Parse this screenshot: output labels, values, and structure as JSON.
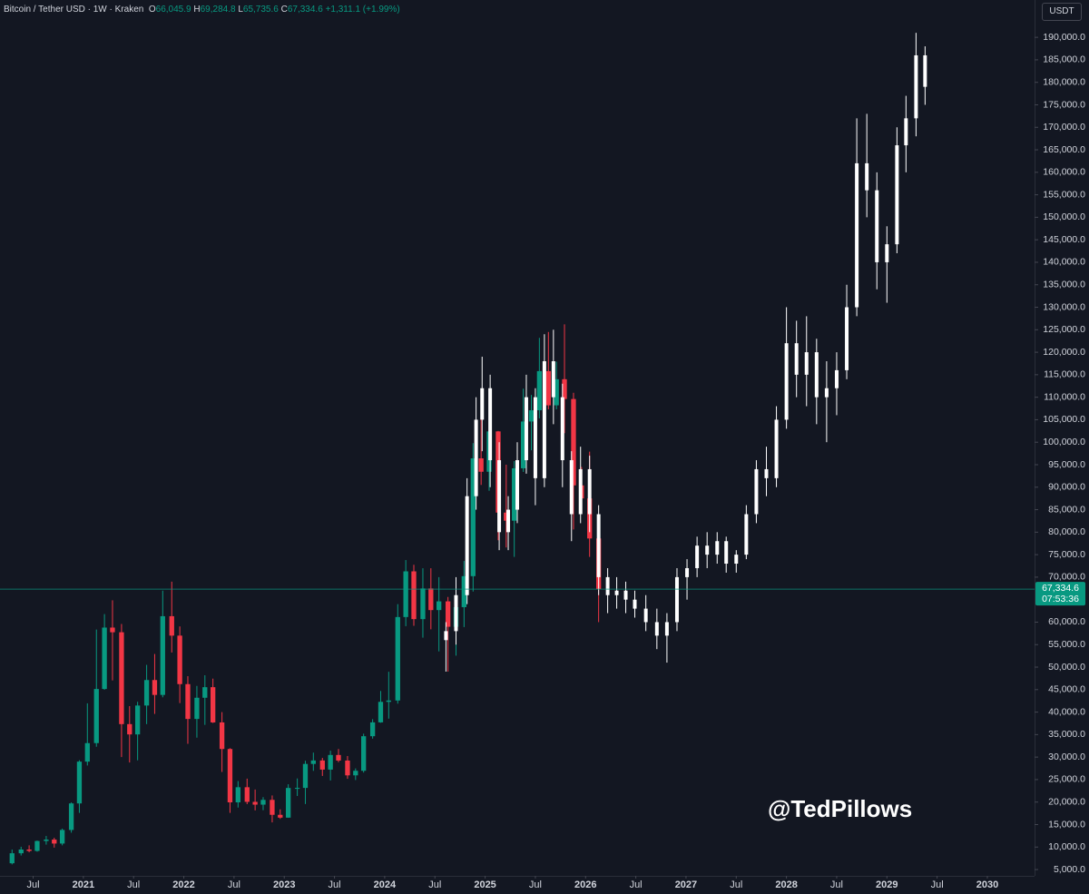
{
  "chart_data": {
    "type": "candlestick",
    "title": "Bitcoin / Tether USD · 1W · Kraken",
    "ohlc_labels": [
      {
        "key": "O",
        "value": "66,045.9"
      },
      {
        "key": "H",
        "value": "69,284.8"
      },
      {
        "key": "L",
        "value": "65,735.6"
      },
      {
        "key": "C",
        "value": "67,334.6"
      }
    ],
    "change": "+1,311.1 (+1.99%)",
    "currency": "USDT",
    "watermark": "@TedPillows",
    "last_price": {
      "value": 67334.6,
      "label": "67,334.6"
    },
    "countdown": "07:53:36",
    "last_price_color": "#089981",
    "grid": false,
    "xlim": [
      2020.17,
      2030.47
    ],
    "ylim": [
      3600,
      198300
    ],
    "xticks": [
      {
        "value": 2020.5,
        "label": "Jul"
      },
      2021,
      {
        "value": 2021.5,
        "label": "Jul"
      },
      2022,
      {
        "value": 2022.5,
        "label": "Jul"
      },
      2023,
      {
        "value": 2023.5,
        "label": "Jul"
      },
      2024,
      {
        "value": 2024.5,
        "label": "Jul"
      },
      2025,
      {
        "value": 2025.5,
        "label": "Jul"
      },
      2026,
      {
        "value": 2026.5,
        "label": "Jul"
      },
      2027,
      {
        "value": 2027.5,
        "label": "Jul"
      },
      2028,
      {
        "value": 2028.5,
        "label": "Jul"
      },
      2029,
      {
        "value": 2029.5,
        "label": "Jul"
      },
      2030
    ],
    "yticks": [
      {
        "value": 5000,
        "label": "5,000.0"
      },
      {
        "value": 10000,
        "label": "10,000.0"
      },
      {
        "value": 15000,
        "label": "15,000.0"
      },
      {
        "value": 20000,
        "label": "20,000.0"
      },
      {
        "value": 25000,
        "label": "25,000.0"
      },
      {
        "value": 30000,
        "label": "30,000.0"
      },
      {
        "value": 35000,
        "label": "35,000.0"
      },
      {
        "value": 40000,
        "label": "40,000.0"
      },
      {
        "value": 45000,
        "label": "45,000.0"
      },
      {
        "value": 50000,
        "label": "50,000.0"
      },
      {
        "value": 55000,
        "label": "55,000.0"
      },
      {
        "value": 60000,
        "label": "60,000.0"
      },
      {
        "value": 70000,
        "label": "70,000.0"
      },
      {
        "value": 75000,
        "label": "75,000.0"
      },
      {
        "value": 80000,
        "label": "80,000.0"
      },
      {
        "value": 85000,
        "label": "85,000.0"
      },
      {
        "value": 90000,
        "label": "90,000.0"
      },
      {
        "value": 95000,
        "label": "95,000.0"
      },
      {
        "value": 100000,
        "label": "100,000.0"
      },
      {
        "value": 105000,
        "label": "105,000.0"
      },
      {
        "value": 110000,
        "label": "110,000.0"
      },
      {
        "value": 115000,
        "label": "115,000.0"
      },
      {
        "value": 120000,
        "label": "120,000.0"
      },
      {
        "value": 125000,
        "label": "125,000.0"
      },
      {
        "value": 130000,
        "label": "130,000.0"
      },
      {
        "value": 135000,
        "label": "135,000.0"
      },
      {
        "value": 140000,
        "label": "140,000.0"
      },
      {
        "value": 145000,
        "label": "145,000.0"
      },
      {
        "value": 150000,
        "label": "150,000.0"
      },
      {
        "value": 155000,
        "label": "155,000.0"
      },
      {
        "value": 160000,
        "label": "160,000.0"
      },
      {
        "value": 165000,
        "label": "165,000.0"
      },
      {
        "value": 170000,
        "label": "170,000.0"
      },
      {
        "value": 175000,
        "label": "175,000.0"
      },
      {
        "value": 180000,
        "label": "180,000.0"
      },
      {
        "value": 185000,
        "label": "185,000.0"
      },
      {
        "value": 190000,
        "label": "190,000.0"
      }
    ],
    "series": [
      {
        "up_color": "#089981",
        "down_color": "#f23645",
        "x": [
          2020.29,
          2020.38,
          2020.46,
          2020.54,
          2020.63,
          2020.71,
          2020.79,
          2020.88,
          2020.96,
          2021.04,
          2021.13,
          2021.21,
          2021.29,
          2021.38,
          2021.46,
          2021.54,
          2021.63,
          2021.71,
          2021.79,
          2021.88,
          2021.96,
          2022.04,
          2022.13,
          2022.21,
          2022.29,
          2022.38,
          2022.46,
          2022.54,
          2022.63,
          2022.71,
          2022.79,
          2022.88,
          2022.96,
          2023.04,
          2023.13,
          2023.21,
          2023.29,
          2023.38,
          2023.46,
          2023.54,
          2023.63,
          2023.71,
          2023.79,
          2023.88,
          2023.96,
          2024.04,
          2024.13,
          2024.21,
          2024.29,
          2024.38,
          2024.46,
          2024.54,
          2024.63,
          2024.71,
          2024.79,
          2024.88,
          2024.96,
          2025.04,
          2025.13,
          2025.21,
          2025.29,
          2025.38,
          2025.46,
          2025.54,
          2025.63,
          2025.71,
          2025.79,
          2025.88,
          2025.96,
          2026.04,
          2026.13
        ],
        "open": [
          6400,
          8620,
          9450,
          9140,
          11350,
          11660,
          10780,
          13800,
          19700,
          28990,
          33110,
          45140,
          58790,
          57750,
          37330,
          35040,
          41460,
          47130,
          43820,
          61320,
          57000,
          46220,
          38480,
          43190,
          45540,
          37710,
          31800,
          19940,
          23300,
          20050,
          19430,
          20490,
          17170,
          16540,
          23140,
          23150,
          28480,
          29250,
          27220,
          30470,
          29230,
          25940,
          26960,
          34640,
          37720,
          42280,
          42580,
          61130,
          71290,
          60670,
          67490,
          62680,
          64620,
          58970,
          63330,
          70220,
          96410,
          93430,
          102400,
          84350,
          82550,
          94200,
          104600,
          107100,
          115800,
          108200,
          114000,
          109600,
          90400,
          87500,
          78600
        ],
        "high": [
          9450,
          10070,
          10380,
          11440,
          12470,
          12070,
          14100,
          19920,
          29300,
          41950,
          58350,
          61790,
          64850,
          59600,
          41330,
          42300,
          50500,
          52920,
          67000,
          69000,
          59050,
          47990,
          45820,
          48190,
          47440,
          40000,
          31980,
          24670,
          25210,
          22790,
          21100,
          21470,
          18390,
          23960,
          25250,
          29190,
          31000,
          29820,
          31430,
          31800,
          30240,
          27480,
          35200,
          38430,
          44700,
          48970,
          64000,
          73800,
          72750,
          71980,
          71980,
          70000,
          65600,
          66500,
          73600,
          99800,
          108300,
          109600,
          102500,
          95000,
          95800,
          111900,
          110500,
          123200,
          124500,
          117900,
          126200,
          111000,
          94500,
          97900,
          79300
        ],
        "low": [
          6150,
          8120,
          8830,
          8970,
          10540,
          9880,
          10380,
          13200,
          17600,
          28130,
          32300,
          44960,
          47050,
          30000,
          28800,
          29280,
          37330,
          39600,
          43290,
          53250,
          42000,
          32950,
          34320,
          37160,
          37580,
          26700,
          17600,
          18780,
          19540,
          18150,
          18190,
          15480,
          16260,
          16500,
          21350,
          19570,
          26940,
          25810,
          24800,
          28860,
          25170,
          24900,
          26560,
          34100,
          37630,
          38550,
          41880,
          59100,
          59190,
          56550,
          58400,
          53500,
          49000,
          52550,
          58900,
          66800,
          90500,
          89200,
          78200,
          76600,
          74500,
          93400,
          98200,
          105300,
          107300,
          107300,
          102000,
          80600,
          84500,
          74500,
          60000
        ],
        "close": [
          8620,
          9450,
          9140,
          11350,
          11660,
          10780,
          13800,
          19700,
          28990,
          33110,
          45140,
          58790,
          57750,
          37330,
          35040,
          41460,
          47130,
          43820,
          61320,
          57000,
          46220,
          38480,
          43190,
          45540,
          37710,
          31800,
          19940,
          23300,
          20050,
          19430,
          20490,
          17170,
          16540,
          23140,
          23150,
          28480,
          29250,
          27220,
          30470,
          29230,
          25940,
          26960,
          34640,
          37720,
          42280,
          42580,
          61130,
          71290,
          60670,
          67490,
          62680,
          64620,
          58970,
          63330,
          70220,
          96410,
          93430,
          102400,
          84350,
          82550,
          94200,
          104600,
          107100,
          115800,
          108200,
          114000,
          109600,
          90400,
          87500,
          78600,
          67334.6
        ]
      },
      {
        "up_color": "#ffffff",
        "down_color": "#ffffff",
        "x": [
          2024.61,
          2024.71,
          2024.82,
          2024.91,
          2024.97,
          2025.05,
          2025.14,
          2025.23,
          2025.32,
          2025.41,
          2025.5,
          2025.59,
          2025.68,
          2025.77,
          2025.86,
          2025.95,
          2026.04,
          2026.13,
          2026.22,
          2026.31,
          2026.4,
          2026.49,
          2026.6,
          2026.71,
          2026.81,
          2026.91,
          2027.01,
          2027.11,
          2027.21,
          2027.31,
          2027.4,
          2027.5,
          2027.6,
          2027.7,
          2027.8,
          2027.9,
          2028.0,
          2028.1,
          2028.2,
          2028.3,
          2028.4,
          2028.5,
          2028.6,
          2028.7,
          2028.8,
          2028.9,
          2029.0,
          2029.1,
          2029.19,
          2029.29,
          2029.38
        ],
        "open": [
          56000,
          58000,
          66000,
          88000,
          105000,
          112000,
          96000,
          80000,
          85000,
          96000,
          110000,
          92000,
          118000,
          110000,
          96000,
          84000,
          94000,
          84000,
          70000,
          66000,
          67000,
          65000,
          63000,
          60000,
          57000,
          60000,
          70000,
          72000,
          77000,
          75000,
          78000,
          73000,
          75000,
          84000,
          94000,
          92000,
          105000,
          122000,
          115000,
          120000,
          110000,
          112000,
          116000,
          130000,
          162000,
          156000,
          140000,
          144000,
          166000,
          172000,
          186000
        ],
        "high": [
          60000,
          70000,
          92000,
          110000,
          119000,
          115000,
          100000,
          88000,
          100000,
          115000,
          112000,
          124000,
          125000,
          113000,
          98000,
          99000,
          97000,
          86000,
          72000,
          70000,
          69000,
          67000,
          66000,
          63000,
          62000,
          72000,
          74000,
          79000,
          80000,
          80000,
          79000,
          76000,
          86000,
          96000,
          99000,
          108000,
          130000,
          127000,
          128000,
          123000,
          118000,
          120000,
          135000,
          172000,
          173000,
          160000,
          148000,
          170000,
          177000,
          191000,
          188000
        ],
        "low": [
          49000,
          55000,
          64000,
          85000,
          98000,
          90000,
          76000,
          76000,
          82000,
          93000,
          86000,
          90000,
          104000,
          90000,
          78000,
          82000,
          80000,
          66000,
          62000,
          63000,
          62000,
          61000,
          58000,
          54000,
          51000,
          58000,
          65000,
          70000,
          72000,
          73000,
          71000,
          71000,
          74000,
          82000,
          88000,
          90000,
          103000,
          110000,
          108000,
          104000,
          100000,
          106000,
          114000,
          128000,
          150000,
          134000,
          131000,
          142000,
          160000,
          168000,
          175000
        ],
        "close": [
          58000,
          66000,
          88000,
          105000,
          112000,
          96000,
          80000,
          85000,
          96000,
          110000,
          92000,
          118000,
          110000,
          96000,
          84000,
          94000,
          84000,
          70000,
          66000,
          67000,
          65000,
          63000,
          60000,
          57000,
          60000,
          70000,
          72000,
          77000,
          75000,
          78000,
          73000,
          75000,
          84000,
          94000,
          92000,
          105000,
          122000,
          115000,
          120000,
          110000,
          112000,
          116000,
          130000,
          162000,
          156000,
          140000,
          144000,
          166000,
          172000,
          186000,
          179000
        ]
      }
    ]
  }
}
